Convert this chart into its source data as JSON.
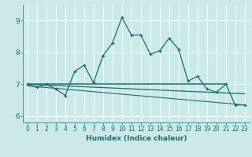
{
  "xlabel": "Humidex (Indice chaleur)",
  "ylabel": "",
  "xlim": [
    -0.5,
    23.5
  ],
  "ylim": [
    5.8,
    9.5
  ],
  "yticks": [
    6,
    7,
    8,
    9
  ],
  "xticks": [
    0,
    1,
    2,
    3,
    4,
    5,
    6,
    7,
    8,
    9,
    10,
    11,
    12,
    13,
    14,
    15,
    16,
    17,
    18,
    19,
    20,
    21,
    22,
    23
  ],
  "bg_color": "#cce8e8",
  "grid_color": "#ffffff",
  "line_color": "#1a6e6e",
  "line1_x": [
    0,
    1,
    2,
    3,
    4,
    5,
    6,
    7,
    8,
    9,
    10,
    11,
    12,
    13,
    14,
    15,
    16,
    17,
    18,
    19,
    20,
    21,
    22,
    23
  ],
  "line1_y": [
    7.0,
    6.9,
    7.0,
    6.85,
    6.65,
    7.4,
    7.6,
    7.05,
    7.9,
    8.3,
    9.1,
    8.55,
    8.55,
    7.95,
    8.05,
    8.45,
    8.1,
    7.1,
    7.25,
    6.85,
    6.75,
    7.0,
    6.35,
    6.35
  ],
  "line2_x": [
    0,
    21
  ],
  "line2_y": [
    7.0,
    7.0
  ],
  "line3_x": [
    0,
    23
  ],
  "line3_y": [
    7.0,
    6.7
  ],
  "line4_x": [
    0,
    23
  ],
  "line4_y": [
    6.95,
    6.35
  ],
  "xlabel_fontsize": 6.5,
  "tick_fontsize": 6
}
